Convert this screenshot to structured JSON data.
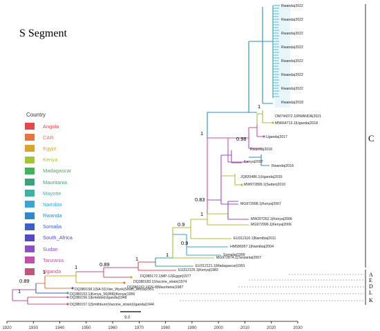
{
  "title": "S Segment",
  "legend": {
    "title": "Country",
    "items": [
      {
        "label": "Angola",
        "color": "#e0484b"
      },
      {
        "label": "CAR",
        "color": "#e8743a"
      },
      {
        "label": "Egypt",
        "color": "#d9a52b"
      },
      {
        "label": "Kenya",
        "color": "#a4c43a"
      },
      {
        "label": "Madagascar",
        "color": "#3fb45b"
      },
      {
        "label": "Mauritania",
        "color": "#3aa37a"
      },
      {
        "label": "Mayotte",
        "color": "#3bb2a8"
      },
      {
        "label": "Namibia",
        "color": "#3aa6d6"
      },
      {
        "label": "Rwanda",
        "color": "#2e88c9"
      },
      {
        "label": "Somalia",
        "color": "#3b5fc6"
      },
      {
        "label": "South_Africa",
        "color": "#5448c4"
      },
      {
        "label": "Sudan",
        "color": "#8e4fc4"
      },
      {
        "label": "Tanzania",
        "color": "#c24fa8"
      },
      {
        "label": "Uganda",
        "color": "#c3557b"
      }
    ]
  },
  "clades": [
    "C",
    "A",
    "E",
    "D",
    "L",
    "K"
  ],
  "support": {
    "s1": "1",
    "s2": "0.98",
    "s3": "1",
    "s4": "0.83",
    "s5": "1",
    "s6": "0.9",
    "s7": "0.9",
    "s8": "1",
    "s9": "1",
    "s10": "0.89",
    "s11": "1",
    "s12": "1",
    "s13": "0.89",
    "s14": "1"
  },
  "tips": {
    "t1": "DQ380158.1|SA-51|Van_Wyck|South_Africa|1951",
    "t2": "DQ380156.1|Entebbe|Uganda|1948",
    "t3": "DQ380157.1|Smithburn|Vaccine_strain|Uganda|1944",
    "t4": "DQ380182.1|Zinga|CAR|1969",
    "t5": "DQ380152.1|Kenya_56(IB8)|Kenya|1956",
    "t6": "DQ380172.1|MP-12|Egypt|1977",
    "t7": "DQ380162.1|OS-8|Mauritania|1987",
    "t8": "DQ380183.1|Vaccine_strain|1974",
    "t9": "EU312121.1|Madagascar|1991",
    "t10": "EU312125.1|Kenya|1983",
    "t11": "EU312116.1|Namibia|2011",
    "t12": "HM586957.1|Namibia|2004",
    "t13": "MG972874.1|Tanzania|2007",
    "t14": "MG972998.1|Kenya|2007",
    "t15": "MW207262.1|Kenya|2006",
    "t16": "MG972996.1|Kenya|2006",
    "t17": "MW972899.1|Sudan|2010",
    "t18": "JQ820486.1|Uganda|2016",
    "t19": "OM744372.1|RWANDA|2021",
    "t20": "MN664713.1|Uganda|2018",
    "t21": "Rwanda|2018",
    "t22": "Rwanda|2022",
    "t23": "Uganda|2017",
    "t24": "Kenya|2007",
    "t25": "Somalia|1999"
  },
  "axis": {
    "ticks": [
      "1920",
      "1930",
      "1940",
      "1950",
      "1960",
      "1970",
      "1980",
      "1990",
      "2000",
      "2010",
      "2020",
      "2030"
    ],
    "scale_label": "9.0"
  }
}
